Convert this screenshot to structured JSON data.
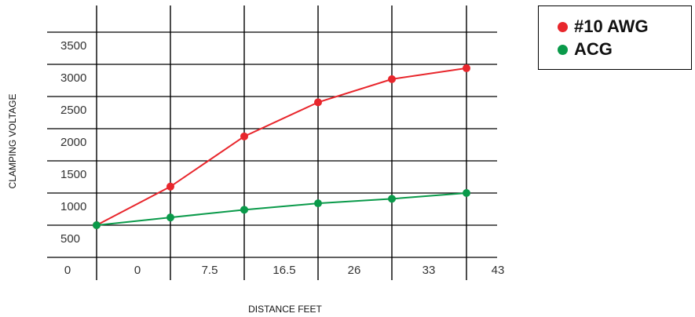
{
  "chart_data": {
    "type": "line",
    "xlabel": "DISTANCE FEET",
    "ylabel": "CLAMPING VOLTAGE",
    "x_tick_labels": [
      "0",
      "0",
      "7.5",
      "16.5",
      "26",
      "33",
      "43"
    ],
    "y_tick_labels": [
      "500",
      "1000",
      "1500",
      "2000",
      "2500",
      "3000",
      "3500"
    ],
    "y_ticks": [
      500,
      1000,
      1500,
      2000,
      2500,
      3000,
      3500
    ],
    "series": [
      {
        "name": "#10 AWG",
        "color": "#e8262c",
        "points": [
          {
            "x_index": 0,
            "y": 500
          },
          {
            "x_index": 1,
            "y": 1100
          },
          {
            "x_index": 2,
            "y": 1880
          },
          {
            "x_index": 3,
            "y": 2410
          },
          {
            "x_index": 4,
            "y": 2770
          },
          {
            "x_index": 5,
            "y": 2940
          }
        ]
      },
      {
        "name": "ACG",
        "color": "#0a9a4a",
        "points": [
          {
            "x_index": 0,
            "y": 500
          },
          {
            "x_index": 1,
            "y": 620
          },
          {
            "x_index": 2,
            "y": 740
          },
          {
            "x_index": 3,
            "y": 840
          },
          {
            "x_index": 4,
            "y": 910
          },
          {
            "x_index": 5,
            "y": 1000
          }
        ]
      }
    ],
    "grid": true,
    "legend_position": "top-right"
  }
}
